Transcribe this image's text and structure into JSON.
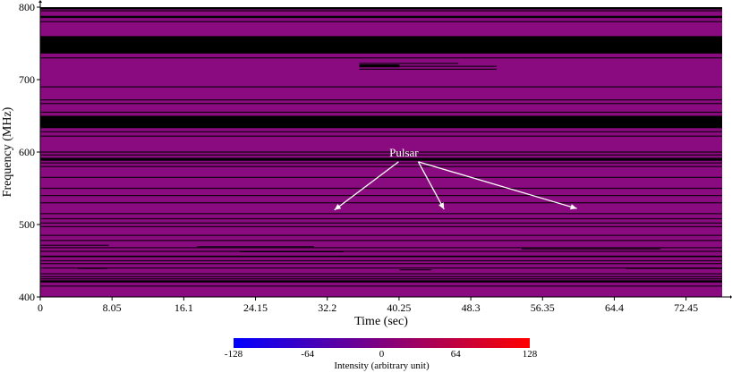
{
  "chart_data": {
    "type": "heatmap",
    "xlabel": "Time (sec)",
    "ylabel": "Frequency (MHz)",
    "xlim": [
      0,
      76.5
    ],
    "ylim": [
      400,
      800
    ],
    "x_ticks": [
      0,
      8.05,
      16.1,
      24.15,
      32.2,
      40.25,
      48.3,
      56.35,
      64.4,
      72.45
    ],
    "x_tick_labels": [
      "0",
      "8.05",
      "16.1",
      "24.15",
      "32.2",
      "40.25",
      "48.3",
      "56.35",
      "64.4",
      "72.45"
    ],
    "y_ticks": [
      400,
      500,
      600,
      700,
      800
    ],
    "y_tick_labels": [
      "400",
      "500",
      "600",
      "700",
      "800"
    ],
    "background_intensity": 20,
    "masked_bands_mhz": [
      [
        797,
        800
      ],
      [
        785,
        788
      ],
      [
        736,
        760
      ],
      [
        633,
        650
      ],
      [
        588,
        592
      ],
      [
        420,
        423
      ],
      [
        455,
        457
      ]
    ],
    "rfi_lines_mhz": [
      795,
      780,
      730,
      690,
      672,
      667,
      655,
      628,
      622,
      600,
      596,
      585,
      580,
      565,
      550,
      540,
      530,
      515,
      508,
      502,
      497,
      485,
      478,
      468,
      463,
      450,
      446,
      440,
      432,
      428,
      425,
      415
    ],
    "partial_rfi": [
      {
        "t_start": 35.8,
        "t_end": 40.3,
        "f_low": 717,
        "f_high": 721
      },
      {
        "t_start": 35.8,
        "t_end": 51.2,
        "f_low": 718,
        "f_high": 719
      },
      {
        "t_start": 35.8,
        "t_end": 51.2,
        "f_low": 714,
        "f_high": 715
      },
      {
        "t_start": 35.8,
        "t_end": 46.9,
        "f_low": 722,
        "f_high": 723
      },
      {
        "t_start": 0,
        "t_end": 7.7,
        "f_low": 471,
        "f_high": 472
      },
      {
        "t_start": 17.6,
        "t_end": 30.7,
        "f_low": 469,
        "f_high": 470
      },
      {
        "t_start": 22.4,
        "t_end": 34.0,
        "f_low": 462,
        "f_high": 463
      },
      {
        "t_start": 4.2,
        "t_end": 7.5,
        "f_low": 439,
        "f_high": 440
      },
      {
        "t_start": 40.3,
        "t_end": 43.9,
        "f_low": 437,
        "f_high": 438
      },
      {
        "t_start": 54.0,
        "t_end": 69.6,
        "f_low": 466,
        "f_high": 467
      },
      {
        "t_start": 65.7,
        "t_end": 76.5,
        "f_low": 439,
        "f_high": 440
      }
    ],
    "annotations": [
      {
        "text": "Pulsar",
        "x": 40.8,
        "y": 594,
        "arrows_to": [
          [
            33.0,
            520
          ],
          [
            45.3,
            521
          ],
          [
            60.2,
            522
          ]
        ]
      }
    ],
    "colorbar": {
      "label": "Intensity (arbitrary unit)",
      "range": [
        -128,
        128
      ],
      "ticks": [
        -128,
        -64,
        0,
        64,
        128
      ],
      "tick_labels": [
        "-128",
        "-64",
        "0",
        "64",
        "128"
      ],
      "colors": [
        "#0000ff",
        "#800080",
        "#ff0000"
      ]
    },
    "colors": {
      "background": "#8a0a80",
      "masked": "#000000",
      "annotation": "#ffffff"
    }
  }
}
